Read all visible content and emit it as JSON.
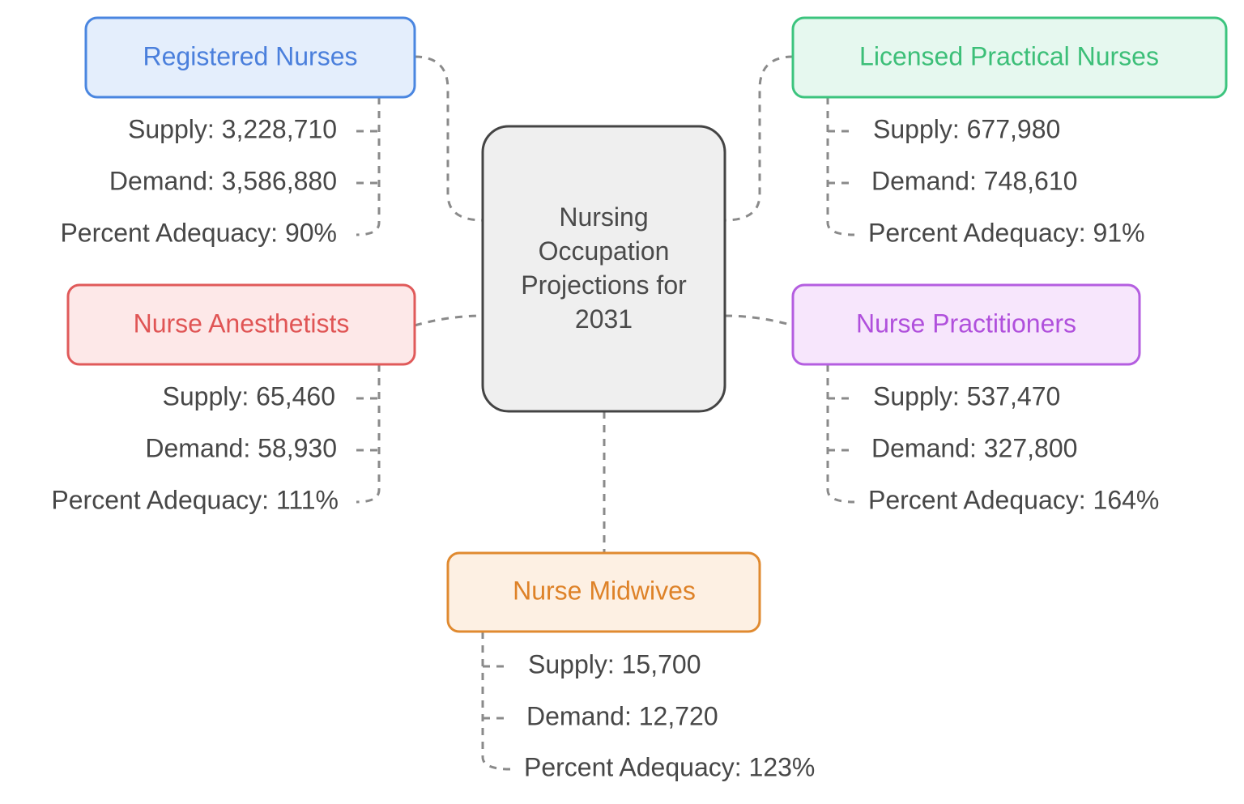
{
  "center": {
    "label": "Nursing Occupation Projections for 2031"
  },
  "nodes": [
    {
      "label": "Registered Nurses",
      "items": [
        "Supply: 3,228,710",
        "Demand: 3,586,880",
        "Percent Adequacy: 90%"
      ]
    },
    {
      "label": "Licensed Practical Nurses",
      "items": [
        "Supply: 677,980",
        "Demand: 748,610",
        "Percent Adequacy: 91%"
      ]
    },
    {
      "label": "Nurse Anesthetists",
      "items": [
        "Supply: 65,460",
        "Demand: 58,930",
        "Percent Adequacy: 111%"
      ]
    },
    {
      "label": "Nurse Practitioners",
      "items": [
        "Supply: 537,470",
        "Demand: 327,800",
        "Percent Adequacy: 164%"
      ]
    },
    {
      "label": "Nurse Midwives",
      "items": [
        "Supply: 15,700",
        "Demand: 12,720",
        "Percent Adequacy: 123%"
      ]
    }
  ]
}
